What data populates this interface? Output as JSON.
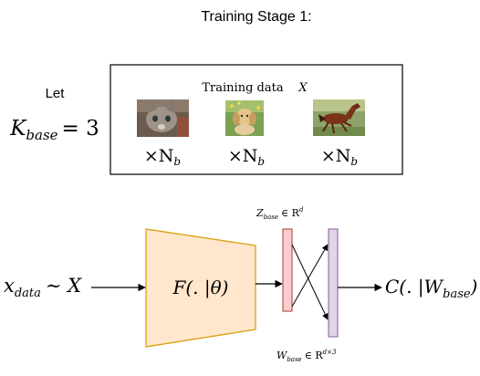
{
  "title": "Training Stage 1:",
  "let_label": "Let",
  "k_base": {
    "symbol": "K",
    "subscript": "base",
    "relation": "= 3"
  },
  "data_box": {
    "caption": "Training data",
    "caption_symbol": "X",
    "images": [
      {
        "subject": "kitten",
        "multiplier": "×N",
        "multiplier_sub": "b"
      },
      {
        "subject": "puppy",
        "multiplier": "×N",
        "multiplier_sub": "b"
      },
      {
        "subject": "horse",
        "multiplier": "×N",
        "multiplier_sub": "b"
      }
    ]
  },
  "input_label": {
    "symbol": "x",
    "subscript": "data",
    "rest": "∼ X"
  },
  "encoder_label": "F(. |θ)",
  "z_label": {
    "symbol": "Z",
    "subscript": "base",
    "rest": "∈ R",
    "superscript": "d"
  },
  "w_label": {
    "symbol": "W",
    "subscript": "base",
    "rest": "∈ R",
    "superscript": "d×3"
  },
  "output_label": {
    "prefix": "C(. |W",
    "subscript": "base",
    "suffix": ")"
  },
  "colors": {
    "encoder_fill": "#ffe6cc",
    "encoder_stroke": "#d79b00",
    "z_fill": "#f8cecc",
    "z_stroke": "#b85450",
    "w_fill": "#e1d5e7",
    "w_stroke": "#9673a6"
  }
}
